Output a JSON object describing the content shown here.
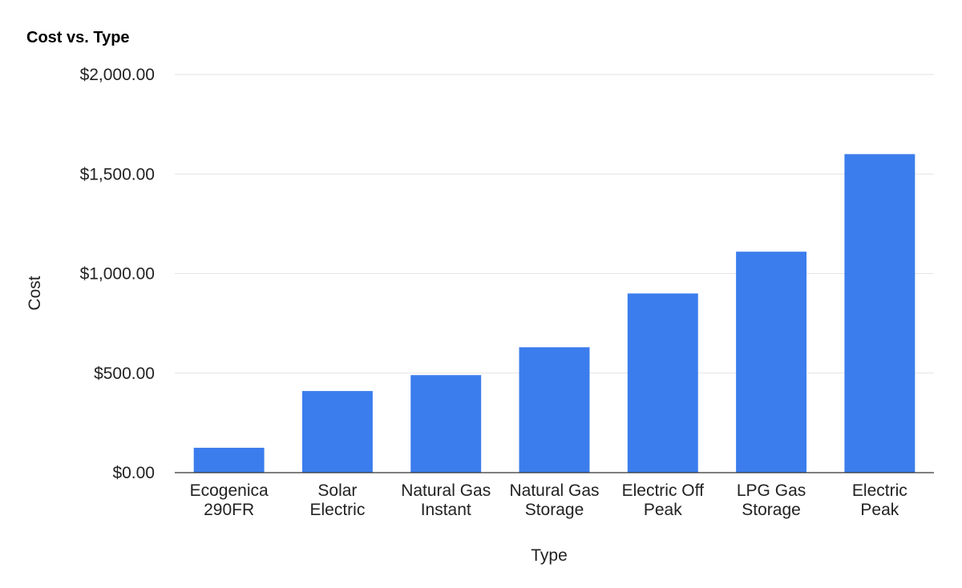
{
  "chart_data": {
    "type": "bar",
    "title": "Cost vs. Type",
    "xlabel": "Type",
    "ylabel": "Cost",
    "ylim": [
      0,
      2000
    ],
    "yticks": [
      {
        "value": 0,
        "label": "$0.00"
      },
      {
        "value": 500,
        "label": "$500.00"
      },
      {
        "value": 1000,
        "label": "$1,000.00"
      },
      {
        "value": 1500,
        "label": "$1,500.00"
      },
      {
        "value": 2000,
        "label": "$2,000.00"
      }
    ],
    "grid": true,
    "legend": "none",
    "bar_color": "#3b7ded",
    "categories": [
      [
        "Ecogenica",
        "290FR"
      ],
      [
        "Solar",
        "Electric"
      ],
      [
        "Natural Gas",
        "Instant"
      ],
      [
        "Natural Gas",
        "Storage"
      ],
      [
        "Electric Off",
        "Peak"
      ],
      [
        "LPG Gas",
        "Storage"
      ],
      [
        "Electric",
        "Peak"
      ]
    ],
    "values": [
      125,
      410,
      490,
      630,
      900,
      1110,
      1600
    ]
  }
}
